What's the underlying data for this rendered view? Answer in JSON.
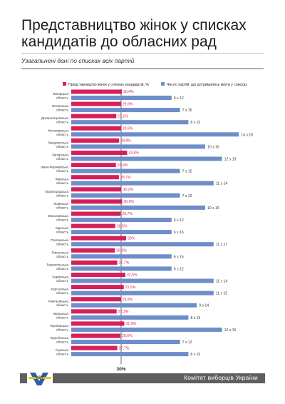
{
  "header": {
    "title_line1": "Представництво жінок у списках",
    "title_line2": "кандидатів до обласних рад",
    "subtitle": "Узагальнені дані по списках всіх партій"
  },
  "footer": {
    "org": "Комітет виборців України"
  },
  "colors": {
    "women_bar": "#d5205a",
    "parties_bar": "#6e8ec9",
    "center_line": "#444444"
  },
  "chart_data": {
    "type": "bar",
    "layout": "butterfly-horizontal",
    "legend_position": "top",
    "reference_label": "30%",
    "categories": [
      "Вінницька область",
      "Волинська область",
      "Дніпропетровська область",
      "Житомирська область",
      "Закарпатська область",
      "Запорізька область",
      "Івано-Франківська область",
      "Київська область",
      "Кіровоградська область",
      "Львівська область",
      "Миколаївська область",
      "Одеська область",
      "Полтавська область",
      "Рівненська область",
      "Тернопільська область",
      "Харківська область",
      "Херсонська область",
      "Хмельницька область",
      "Черкаська область",
      "Чернівецька область",
      "Чернігівська область",
      "Сумська область"
    ],
    "series": [
      {
        "name": "Представництво жінок у списках кандидатів, %",
        "values": [
          30.4,
          29.9,
          27.1,
          29.9,
          28.8,
          33.6,
          26.9,
          28.7,
          30.2,
          30.6,
          29.7,
          26.5,
          33,
          26.3,
          27.7,
          32.5,
          31.6,
          29.8,
          27.3,
          31.9,
          29.6,
          27.7
        ],
        "labels": [
          "30,4%",
          "29,9%",
          "27,1%",
          "29,9%",
          "28,8%",
          "33,6%",
          "26,9%",
          "28,7%",
          "30,2%",
          "30,6%",
          "29,7%",
          "26,5%",
          "33%",
          "26,3%",
          "27,7%",
          "32,5%",
          "31,6%",
          "29,8%",
          "27,3%",
          "31,9%",
          "29,6%",
          "27,7%"
        ]
      },
      {
        "name": "Число партій, що дотримались квоти у списках",
        "values": [
          6,
          7,
          8,
          14,
          10,
          12,
          7,
          11,
          7,
          10,
          6,
          6,
          11,
          6,
          6,
          11,
          11,
          9,
          8,
          12,
          7,
          8
        ],
        "totals": [
          12,
          15,
          15,
          18,
          16,
          13,
          15,
          14,
          12,
          16,
          12,
          16,
          17,
          15,
          12,
          14,
          15,
          14,
          15,
          15,
          12,
          15
        ],
        "labels": [
          "6 з 12",
          "7 з 15",
          "8 з 15",
          "14 з 18",
          "10 з 16",
          "12 з 13",
          "7 з 15",
          "11 з 14",
          "7 з 12",
          "10 з 16",
          "6 з 12",
          "6 з 16",
          "11 з 17",
          "6 з 15",
          "6 з 12",
          "11 з 14",
          "11 з 15",
          "9 з 14",
          "8 з 15",
          "12 з 15",
          "7 з 12",
          "8 з 15"
        ]
      }
    ]
  }
}
